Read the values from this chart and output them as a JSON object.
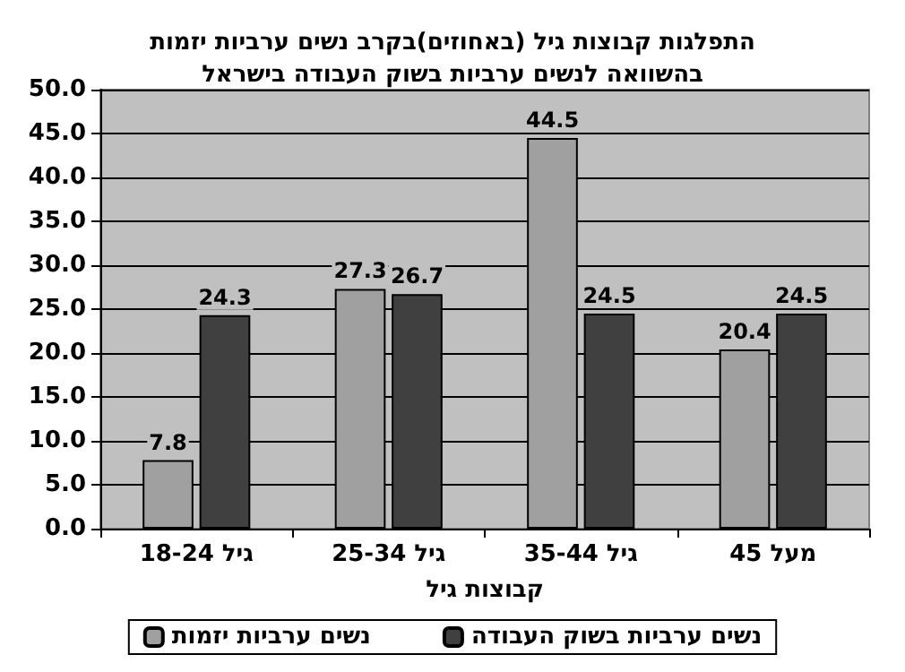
{
  "chart_data": {
    "type": "bar",
    "title": "התפלגות קבוצות גיל (באחוזים)בקרב נשים ערביות יזמות\nבהשוואה לנשים ערביות בשוק העבודה בישראל",
    "xlabel": "קבוצות גיל",
    "categories": [
      "גיל 18-24",
      "גיל 25-34",
      "גיל 35-44",
      "מעל 45"
    ],
    "series": [
      {
        "name": "נשים ערביות יזמות",
        "color": "#a0a0a0",
        "values": [
          7.8,
          27.3,
          44.5,
          20.4
        ]
      },
      {
        "name": "נשים ערביות בשוק העבודה",
        "color": "#404040",
        "values": [
          24.3,
          26.7,
          24.5,
          24.5
        ]
      }
    ],
    "ylim": [
      0,
      50
    ],
    "yticks": [
      {
        "value": 0,
        "label": "0.0"
      },
      {
        "value": 5,
        "label": "5.0"
      },
      {
        "value": 10,
        "label": "10.0"
      },
      {
        "value": 15,
        "label": "15.0"
      },
      {
        "value": 20,
        "label": "20.0"
      },
      {
        "value": 25,
        "label": "25.0"
      },
      {
        "value": 30,
        "label": "30.0"
      },
      {
        "value": 35,
        "label": "35.0"
      },
      {
        "value": 40,
        "label": "40.0"
      },
      {
        "value": 45,
        "label": "45.0"
      },
      {
        "value": 50,
        "label": "50.0"
      }
    ],
    "grid": "y",
    "legend": "bottom",
    "data_labels": true
  }
}
